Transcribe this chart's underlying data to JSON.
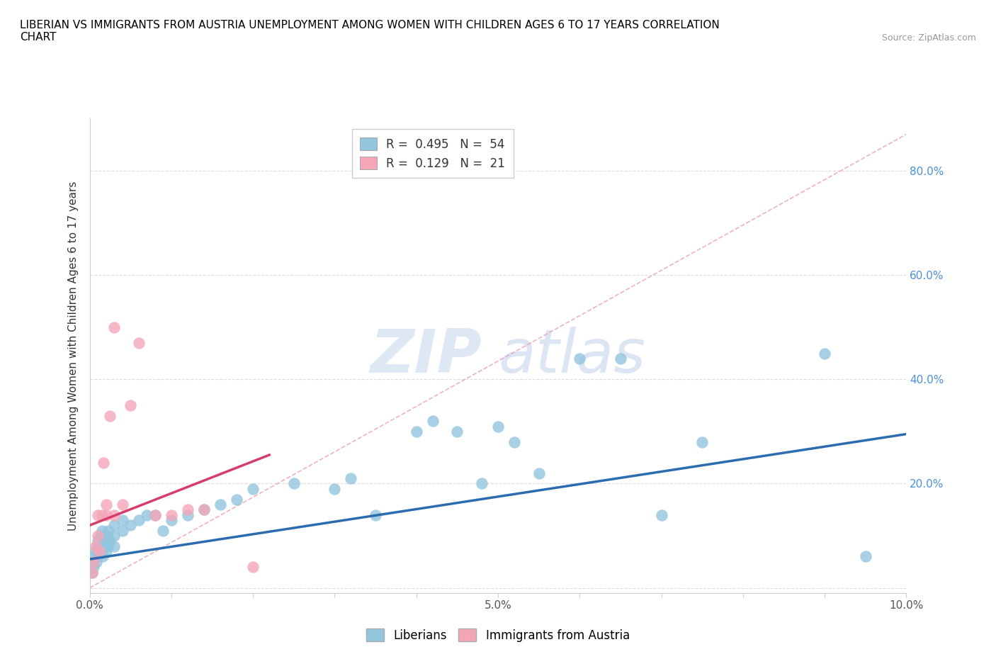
{
  "title": "LIBERIAN VS IMMIGRANTS FROM AUSTRIA UNEMPLOYMENT AMONG WOMEN WITH CHILDREN AGES 6 TO 17 YEARS CORRELATION\nCHART",
  "source_text": "Source: ZipAtlas.com",
  "ylabel": "Unemployment Among Women with Children Ages 6 to 17 years",
  "xlabel": "",
  "watermark_zip": "ZIP",
  "watermark_atlas": "atlas",
  "legend_liberians": "Liberians",
  "legend_austria": "Immigrants from Austria",
  "r_liberian": "0.495",
  "n_liberian": "54",
  "r_austria": "0.129",
  "n_austria": "21",
  "blue_scatter_color": "#92c5de",
  "pink_scatter_color": "#f4a6b8",
  "blue_line_color": "#2b6cb0",
  "pink_line_color": "#d63d6a",
  "trendline_dashed_color": "#e8a0b0",
  "xlim": [
    0.0,
    0.1
  ],
  "ylim": [
    -0.01,
    0.9
  ],
  "xticks": [
    0.0,
    0.01,
    0.02,
    0.03,
    0.04,
    0.05,
    0.06,
    0.07,
    0.08,
    0.09,
    0.1
  ],
  "xticklabels": [
    "0.0%",
    "",
    "",
    "",
    "",
    "5.0%",
    "",
    "",
    "",
    "",
    "10.0%"
  ],
  "yticks": [
    0.0,
    0.2,
    0.4,
    0.6,
    0.8
  ],
  "yticklabels": [
    "",
    "20.0%",
    "40.0%",
    "60.0%",
    "80.0%"
  ],
  "blue_x": [
    0.0003,
    0.0004,
    0.0005,
    0.0006,
    0.0007,
    0.0008,
    0.0009,
    0.001,
    0.001,
    0.0012,
    0.0013,
    0.0014,
    0.0015,
    0.0016,
    0.0017,
    0.0018,
    0.002,
    0.002,
    0.0022,
    0.0023,
    0.0025,
    0.003,
    0.003,
    0.003,
    0.004,
    0.004,
    0.005,
    0.006,
    0.007,
    0.008,
    0.009,
    0.01,
    0.012,
    0.014,
    0.016,
    0.018,
    0.02,
    0.025,
    0.03,
    0.032,
    0.035,
    0.04,
    0.042,
    0.045,
    0.048,
    0.05,
    0.052,
    0.055,
    0.06,
    0.065,
    0.07,
    0.075,
    0.09,
    0.095
  ],
  "blue_y": [
    0.03,
    0.05,
    0.04,
    0.06,
    0.07,
    0.05,
    0.08,
    0.06,
    0.09,
    0.07,
    0.1,
    0.08,
    0.11,
    0.06,
    0.09,
    0.08,
    0.07,
    0.1,
    0.08,
    0.11,
    0.09,
    0.1,
    0.12,
    0.08,
    0.11,
    0.13,
    0.12,
    0.13,
    0.14,
    0.14,
    0.11,
    0.13,
    0.14,
    0.15,
    0.16,
    0.17,
    0.19,
    0.2,
    0.19,
    0.21,
    0.14,
    0.3,
    0.32,
    0.3,
    0.2,
    0.31,
    0.28,
    0.22,
    0.44,
    0.44,
    0.14,
    0.28,
    0.45,
    0.06
  ],
  "pink_x": [
    0.0003,
    0.0005,
    0.0007,
    0.001,
    0.001,
    0.0012,
    0.0015,
    0.0017,
    0.002,
    0.002,
    0.0025,
    0.003,
    0.003,
    0.004,
    0.005,
    0.006,
    0.008,
    0.01,
    0.012,
    0.014,
    0.02
  ],
  "pink_y": [
    0.03,
    0.05,
    0.08,
    0.1,
    0.14,
    0.07,
    0.14,
    0.24,
    0.14,
    0.16,
    0.33,
    0.5,
    0.14,
    0.16,
    0.35,
    0.47,
    0.14,
    0.14,
    0.15,
    0.15,
    0.04
  ],
  "blue_line_x0": 0.0,
  "blue_line_y0": 0.055,
  "blue_line_x1": 0.1,
  "blue_line_y1": 0.295,
  "pink_line_x0": 0.0,
  "pink_line_y0": 0.12,
  "pink_line_x1": 0.022,
  "pink_line_y1": 0.255,
  "dash_line_x0": 0.0,
  "dash_line_y0": 0.0,
  "dash_line_x1": 0.1,
  "dash_line_y1": 0.87
}
